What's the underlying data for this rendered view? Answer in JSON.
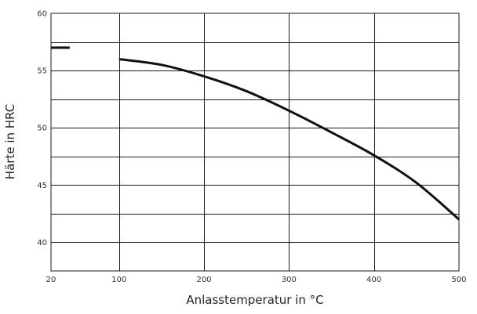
{
  "chart_data": {
    "type": "line",
    "title": "",
    "xlabel": "Anlasstemperatur in °C",
    "ylabel": "Härte in HRC",
    "xlim": [
      20,
      500
    ],
    "ylim": [
      37.5,
      60
    ],
    "grid": true,
    "x_ticks": [
      {
        "value": 20,
        "label": "20"
      },
      {
        "value": 100,
        "label": "100"
      },
      {
        "value": 200,
        "label": "200"
      },
      {
        "value": 300,
        "label": "300"
      },
      {
        "value": 400,
        "label": "400"
      },
      {
        "value": 500,
        "label": "500"
      }
    ],
    "y_ticks": [
      {
        "value": 40,
        "label": "40"
      },
      {
        "value": 45,
        "label": "45"
      },
      {
        "value": 50,
        "label": "50"
      },
      {
        "value": 55,
        "label": "55"
      },
      {
        "value": 60,
        "label": "60"
      }
    ],
    "y_minor_gridlines": [
      42.5,
      47.5,
      52.5,
      57.5
    ],
    "series": [
      {
        "color": "#111111",
        "points": [
          [
            20,
            57.0
          ],
          [
            42,
            57.0
          ]
        ]
      },
      {
        "color": "#111111",
        "points": [
          [
            100,
            56.0
          ],
          [
            150,
            55.5
          ],
          [
            200,
            54.5
          ],
          [
            250,
            53.2
          ],
          [
            300,
            51.5
          ],
          [
            350,
            49.6
          ],
          [
            400,
            47.6
          ],
          [
            450,
            45.2
          ],
          [
            500,
            42.0
          ]
        ]
      }
    ]
  }
}
